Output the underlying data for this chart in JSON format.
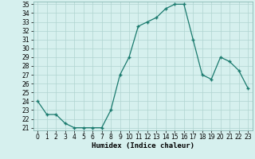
{
  "x": [
    0,
    1,
    2,
    3,
    4,
    5,
    6,
    7,
    8,
    9,
    10,
    11,
    12,
    13,
    14,
    15,
    16,
    17,
    18,
    19,
    20,
    21,
    22,
    23
  ],
  "y": [
    24.0,
    22.5,
    22.5,
    21.5,
    21.0,
    21.0,
    21.0,
    21.0,
    23.0,
    27.0,
    29.0,
    32.5,
    33.0,
    33.5,
    34.5,
    35.0,
    35.0,
    31.0,
    27.0,
    26.5,
    29.0,
    28.5,
    27.5,
    25.5
  ],
  "xlabel": "Humidex (Indice chaleur)",
  "xlim": [
    -0.5,
    23.5
  ],
  "ylim": [
    20.7,
    35.3
  ],
  "yticks": [
    21,
    22,
    23,
    24,
    25,
    26,
    27,
    28,
    29,
    30,
    31,
    32,
    33,
    34,
    35
  ],
  "xticks": [
    0,
    1,
    2,
    3,
    4,
    5,
    6,
    7,
    8,
    9,
    10,
    11,
    12,
    13,
    14,
    15,
    16,
    17,
    18,
    19,
    20,
    21,
    22,
    23
  ],
  "line_color": "#1a7a6e",
  "marker": "+",
  "bg_color": "#d6f0ee",
  "grid_color": "#b0d4d0",
  "label_fontsize": 6.5,
  "tick_fontsize": 5.5
}
